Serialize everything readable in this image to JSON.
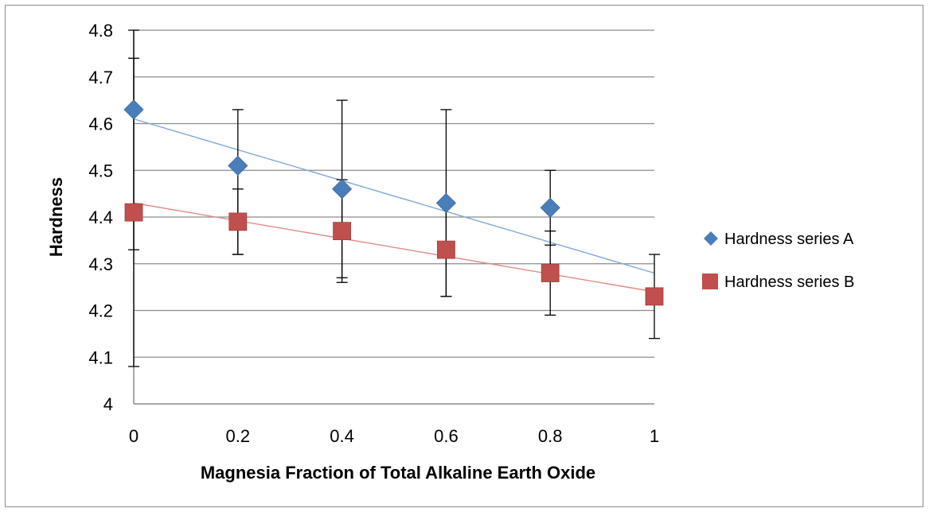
{
  "chart_data": {
    "type": "scatter",
    "xlabel": "Magnesia Fraction of Total Alkaline Earth Oxide",
    "ylabel": "Hardness",
    "xlim": [
      0,
      1
    ],
    "ylim": [
      4,
      4.8
    ],
    "xticks": [
      0,
      0.2,
      0.4,
      0.6,
      0.8,
      1
    ],
    "xtick_labels": [
      "0",
      "0.2",
      "0.4",
      "0.6",
      "0.8",
      "1"
    ],
    "yticks": [
      4,
      4.1,
      4.2,
      4.3,
      4.4,
      4.5,
      4.6,
      4.7,
      4.8
    ],
    "ytick_labels": [
      "4",
      "4.1",
      "4.2",
      "4.3",
      "4.4",
      "4.5",
      "4.6",
      "4.7",
      "4.8"
    ],
    "grid": "horizontal",
    "legend_position": "right",
    "series": [
      {
        "name": "Hardness series A",
        "marker": "diamond",
        "color": "#4a7ebb",
        "trend_color": "#7fa8d8",
        "x": [
          0,
          0.2,
          0.4,
          0.6,
          0.8
        ],
        "y": [
          4.63,
          4.51,
          4.46,
          4.43,
          4.42
        ],
        "err_low": [
          4.08,
          4.32,
          4.27,
          4.23,
          4.34
        ],
        "err_high": [
          4.8,
          4.63,
          4.65,
          4.63,
          4.5
        ],
        "trendline": [
          [
            0,
            4.61
          ],
          [
            1,
            4.28
          ]
        ]
      },
      {
        "name": "Hardness series B",
        "marker": "square",
        "color": "#c0504d",
        "trend_color": "#e08a88",
        "x": [
          0,
          0.2,
          0.4,
          0.6,
          0.8,
          1
        ],
        "y": [
          4.41,
          4.39,
          4.37,
          4.33,
          4.28,
          4.23
        ],
        "err_low": [
          4.33,
          4.32,
          4.26,
          4.23,
          4.19,
          4.14
        ],
        "err_high": [
          4.74,
          4.46,
          4.48,
          4.43,
          4.37,
          4.32
        ],
        "trendline": [
          [
            0,
            4.43
          ],
          [
            1,
            4.24
          ]
        ]
      }
    ]
  }
}
